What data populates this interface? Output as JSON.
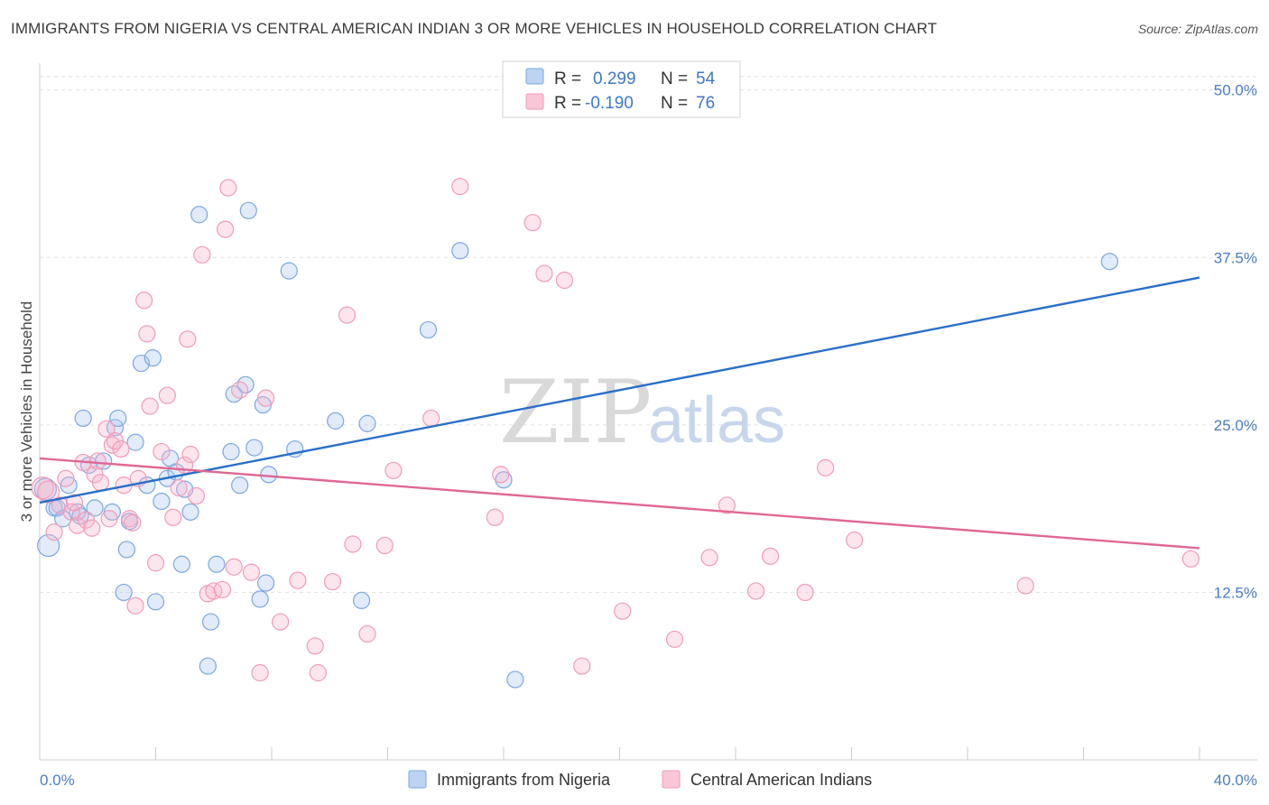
{
  "header": {
    "title": "IMMIGRANTS FROM NIGERIA VS CENTRAL AMERICAN INDIAN 3 OR MORE VEHICLES IN HOUSEHOLD CORRELATION CHART",
    "source": "Source: ZipAtlas.com"
  },
  "watermark": {
    "part1": "ZIP",
    "part2": "atlas"
  },
  "chart_data": {
    "type": "scatter",
    "ylabel": "3 or more Vehicles in Household",
    "xlim": [
      0,
      40
    ],
    "ylim": [
      0,
      52
    ],
    "x_tick_labels": [
      "0.0%",
      "40.0%"
    ],
    "y_ticks": [
      12.5,
      25.0,
      37.5,
      50.0
    ],
    "y_tick_labels": [
      "12.5%",
      "25.0%",
      "37.5%",
      "50.0%"
    ],
    "grid": "horizontal dashed",
    "legend": {
      "placement": "top-center",
      "rows": [
        {
          "r_label": "R =",
          "r_value": "0.299",
          "n_label": "N =",
          "n_value": "54"
        },
        {
          "r_label": "R =",
          "r_value": "-0.190",
          "n_label": "N =",
          "n_value": "76"
        }
      ]
    },
    "series": [
      {
        "name": "Immigrants from Nigeria",
        "color": "#7ba7e0",
        "line_color": "#2a6fc9",
        "trend": {
          "x": [
            0,
            40
          ],
          "y": [
            19.2,
            36.0
          ]
        },
        "points": [
          [
            0.2,
            20.2
          ],
          [
            0.3,
            16.0
          ],
          [
            0.5,
            18.8
          ],
          [
            0.6,
            18.8
          ],
          [
            0.8,
            18.0
          ],
          [
            1.0,
            20.5
          ],
          [
            1.3,
            18.5
          ],
          [
            1.4,
            18.2
          ],
          [
            1.5,
            25.5
          ],
          [
            1.7,
            22.0
          ],
          [
            1.9,
            18.8
          ],
          [
            2.2,
            22.3
          ],
          [
            2.5,
            18.5
          ],
          [
            2.6,
            24.8
          ],
          [
            2.7,
            25.5
          ],
          [
            2.9,
            12.5
          ],
          [
            3.0,
            15.7
          ],
          [
            3.1,
            17.8
          ],
          [
            3.3,
            23.7
          ],
          [
            3.5,
            29.6
          ],
          [
            3.7,
            20.5
          ],
          [
            3.9,
            30.0
          ],
          [
            4.0,
            11.8
          ],
          [
            4.2,
            19.3
          ],
          [
            4.4,
            21.0
          ],
          [
            4.5,
            22.5
          ],
          [
            4.7,
            21.5
          ],
          [
            4.9,
            14.6
          ],
          [
            5.0,
            20.2
          ],
          [
            5.2,
            18.5
          ],
          [
            5.5,
            40.7
          ],
          [
            5.8,
            7.0
          ],
          [
            5.9,
            10.3
          ],
          [
            6.1,
            14.6
          ],
          [
            6.6,
            23.0
          ],
          [
            6.7,
            27.3
          ],
          [
            6.9,
            20.5
          ],
          [
            7.1,
            28.0
          ],
          [
            7.2,
            41.0
          ],
          [
            7.4,
            23.3
          ],
          [
            7.6,
            12.0
          ],
          [
            7.7,
            26.5
          ],
          [
            7.8,
            13.2
          ],
          [
            7.9,
            21.3
          ],
          [
            8.6,
            36.5
          ],
          [
            8.8,
            23.2
          ],
          [
            10.2,
            25.3
          ],
          [
            11.1,
            11.9
          ],
          [
            11.3,
            25.1
          ],
          [
            13.4,
            32.1
          ],
          [
            14.5,
            38.0
          ],
          [
            16.0,
            20.9
          ],
          [
            16.4,
            6.0
          ],
          [
            36.9,
            37.2
          ]
        ]
      },
      {
        "name": "Central American Indians",
        "color": "#f29bb8",
        "line_color": "#e06794",
        "trend": {
          "x": [
            0,
            40
          ],
          "y": [
            22.5,
            15.8
          ]
        },
        "points": [
          [
            0.1,
            20.3
          ],
          [
            0.3,
            20.0
          ],
          [
            0.5,
            17.0
          ],
          [
            0.7,
            19.0
          ],
          [
            0.9,
            21.0
          ],
          [
            1.1,
            18.5
          ],
          [
            1.2,
            19.2
          ],
          [
            1.3,
            17.5
          ],
          [
            1.5,
            22.2
          ],
          [
            1.6,
            17.9
          ],
          [
            1.8,
            17.3
          ],
          [
            1.9,
            21.3
          ],
          [
            2.0,
            22.3
          ],
          [
            2.1,
            20.7
          ],
          [
            2.3,
            24.7
          ],
          [
            2.4,
            18.0
          ],
          [
            2.5,
            23.5
          ],
          [
            2.6,
            23.8
          ],
          [
            2.8,
            23.2
          ],
          [
            2.9,
            20.5
          ],
          [
            3.1,
            18.0
          ],
          [
            3.2,
            17.7
          ],
          [
            3.3,
            11.5
          ],
          [
            3.4,
            21.0
          ],
          [
            3.6,
            34.3
          ],
          [
            3.7,
            31.8
          ],
          [
            3.8,
            26.4
          ],
          [
            4.0,
            14.7
          ],
          [
            4.2,
            23.0
          ],
          [
            4.4,
            27.2
          ],
          [
            4.6,
            18.1
          ],
          [
            4.8,
            20.3
          ],
          [
            5.0,
            22.0
          ],
          [
            5.1,
            31.4
          ],
          [
            5.2,
            22.8
          ],
          [
            5.4,
            19.7
          ],
          [
            5.6,
            37.7
          ],
          [
            5.8,
            12.4
          ],
          [
            6.0,
            12.6
          ],
          [
            6.3,
            12.7
          ],
          [
            6.4,
            39.6
          ],
          [
            6.5,
            42.7
          ],
          [
            6.7,
            14.4
          ],
          [
            6.9,
            27.6
          ],
          [
            7.3,
            14.0
          ],
          [
            7.6,
            6.5
          ],
          [
            7.8,
            27.0
          ],
          [
            8.3,
            10.3
          ],
          [
            8.9,
            13.4
          ],
          [
            9.5,
            8.5
          ],
          [
            9.6,
            6.5
          ],
          [
            10.1,
            13.3
          ],
          [
            10.6,
            33.2
          ],
          [
            10.8,
            16.1
          ],
          [
            11.3,
            9.4
          ],
          [
            11.9,
            16.0
          ],
          [
            12.2,
            21.6
          ],
          [
            13.5,
            25.5
          ],
          [
            14.5,
            42.8
          ],
          [
            15.7,
            18.1
          ],
          [
            15.9,
            21.3
          ],
          [
            17.0,
            40.1
          ],
          [
            17.4,
            36.3
          ],
          [
            18.1,
            35.8
          ],
          [
            18.7,
            7.0
          ],
          [
            20.1,
            11.1
          ],
          [
            21.9,
            9.0
          ],
          [
            23.1,
            15.1
          ],
          [
            23.7,
            19.0
          ],
          [
            24.7,
            12.6
          ],
          [
            25.2,
            15.2
          ],
          [
            26.4,
            12.5
          ],
          [
            27.1,
            21.8
          ],
          [
            28.1,
            16.4
          ],
          [
            34.0,
            13.0
          ],
          [
            39.7,
            15.0
          ]
        ]
      }
    ]
  }
}
